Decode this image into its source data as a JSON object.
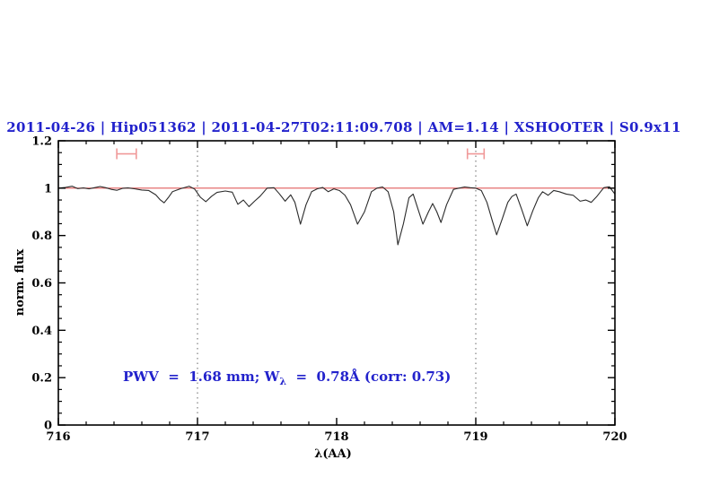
{
  "title": {
    "text": "2011-04-26 | Hip051362 | 2011-04-27T02:11:09.708 | AM=1.14 | XSHOOTER | S0.9x11",
    "color": "#2222cc"
  },
  "annotation": {
    "part1": "PWV  =  1.68 mm; W",
    "sub": "λ",
    "part2": "  =  0.78Å (corr: 0.73)",
    "color": "#2222cc"
  },
  "chart_data": {
    "type": "line",
    "title": "2011-04-26 | Hip051362 | 2011-04-27T02:11:09.708 | AM=1.14 | XSHOOTER | S0.9x11",
    "xlabel": "λ(AA)",
    "ylabel": "norm. flux",
    "xlim": [
      716,
      720
    ],
    "ylim": [
      0,
      1.2
    ],
    "x_ticks": {
      "values": [
        716,
        717,
        718,
        719,
        720
      ],
      "labels": [
        "716",
        "717",
        "718",
        "719",
        "720"
      ],
      "minor_step": 0.2
    },
    "y_ticks": {
      "values": [
        0,
        0.2,
        0.4,
        0.6,
        0.8,
        1,
        1.2
      ],
      "labels": [
        "0",
        "0.2",
        "0.4",
        "0.6",
        "0.8",
        "1",
        "1.2"
      ],
      "minor_step": 0.05
    },
    "grid": "off",
    "dotted_vlines": {
      "x": [
        717,
        719
      ],
      "color": "#666666"
    },
    "continuum_line": {
      "y": 1.0,
      "color": "#e05c5c"
    },
    "band_markers": {
      "color": "#f09999",
      "items": [
        {
          "x1": 716.42,
          "x2": 716.56,
          "y": 1.145
        },
        {
          "x1": 718.94,
          "x2": 719.06,
          "y": 1.145
        }
      ]
    },
    "series": [
      {
        "name": "normalized spectrum",
        "color": "#2b2b2b",
        "x": [
          716.0,
          716.05,
          716.1,
          716.14,
          716.18,
          716.22,
          716.26,
          716.3,
          716.34,
          716.38,
          716.42,
          716.46,
          716.5,
          716.55,
          716.6,
          716.65,
          716.7,
          716.73,
          716.76,
          716.79,
          716.82,
          716.88,
          716.94,
          716.98,
          717.02,
          717.06,
          717.1,
          717.14,
          717.2,
          717.25,
          717.29,
          717.33,
          717.37,
          717.41,
          717.45,
          717.5,
          717.55,
          717.59,
          717.63,
          717.67,
          717.7,
          717.74,
          717.78,
          717.82,
          717.86,
          717.9,
          717.94,
          717.98,
          718.02,
          718.06,
          718.1,
          718.15,
          718.2,
          718.25,
          718.29,
          718.33,
          718.37,
          718.41,
          718.44,
          718.48,
          718.52,
          718.55,
          718.58,
          718.62,
          718.66,
          718.69,
          718.72,
          718.75,
          718.79,
          718.84,
          718.88,
          718.92,
          718.96,
          719.0,
          719.04,
          719.08,
          719.12,
          719.15,
          719.19,
          719.23,
          719.26,
          719.29,
          719.33,
          719.37,
          719.41,
          719.45,
          719.48,
          719.52,
          719.56,
          719.6,
          719.65,
          719.7,
          719.75,
          719.79,
          719.83,
          719.87,
          719.92,
          719.96,
          720.0
        ],
        "y": [
          1.0,
          1.003,
          1.008,
          0.998,
          1.001,
          0.997,
          1.002,
          1.007,
          1.002,
          0.995,
          0.991,
          0.999,
          1.001,
          0.997,
          0.992,
          0.99,
          0.972,
          0.952,
          0.938,
          0.96,
          0.985,
          0.998,
          1.008,
          0.996,
          0.962,
          0.943,
          0.965,
          0.982,
          0.988,
          0.983,
          0.932,
          0.95,
          0.922,
          0.945,
          0.966,
          1.0,
          1.002,
          0.975,
          0.945,
          0.972,
          0.94,
          0.848,
          0.93,
          0.985,
          0.997,
          1.003,
          0.985,
          0.997,
          0.99,
          0.97,
          0.93,
          0.848,
          0.9,
          0.985,
          1.0,
          1.005,
          0.985,
          0.9,
          0.761,
          0.85,
          0.96,
          0.975,
          0.92,
          0.848,
          0.9,
          0.935,
          0.9,
          0.855,
          0.93,
          0.995,
          1.0,
          1.005,
          1.002,
          1.0,
          0.99,
          0.94,
          0.86,
          0.803,
          0.87,
          0.94,
          0.965,
          0.975,
          0.91,
          0.841,
          0.905,
          0.96,
          0.985,
          0.97,
          0.99,
          0.985,
          0.975,
          0.97,
          0.945,
          0.95,
          0.94,
          0.965,
          1.002,
          1.006,
          0.975
        ]
      }
    ]
  }
}
